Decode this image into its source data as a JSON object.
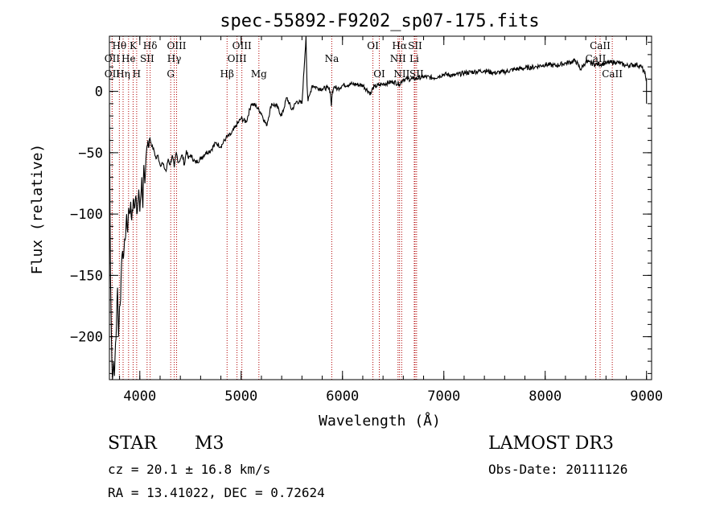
{
  "chart_data": {
    "type": "line",
    "title": "spec-55892-F9202_sp07-175.fits",
    "xlabel": "Wavelength (Å)",
    "ylabel": "Flux (relative)",
    "xlim": [
      3700,
      9050
    ],
    "ylim": [
      -235,
      45
    ],
    "xticks": [
      4000,
      5000,
      6000,
      7000,
      8000,
      9000
    ],
    "yticks": [
      0,
      -50,
      -100,
      -150,
      -200
    ],
    "x_minor_step": 200,
    "y_minor_step": 10,
    "series": [
      {
        "name": "spectrum",
        "x": [
          3700,
          3710,
          3720,
          3730,
          3740,
          3750,
          3760,
          3770,
          3780,
          3790,
          3800,
          3810,
          3820,
          3830,
          3840,
          3850,
          3860,
          3870,
          3880,
          3890,
          3900,
          3910,
          3920,
          3930,
          3940,
          3950,
          3960,
          3970,
          3980,
          3990,
          4000,
          4010,
          4020,
          4030,
          4040,
          4050,
          4060,
          4070,
          4080,
          4090,
          4100,
          4120,
          4140,
          4160,
          4180,
          4200,
          4220,
          4240,
          4260,
          4280,
          4300,
          4320,
          4340,
          4360,
          4380,
          4400,
          4420,
          4440,
          4460,
          4480,
          4500,
          4550,
          4600,
          4650,
          4700,
          4750,
          4800,
          4850,
          4900,
          4950,
          5000,
          5050,
          5100,
          5150,
          5200,
          5250,
          5300,
          5350,
          5400,
          5450,
          5500,
          5550,
          5600,
          5640,
          5650,
          5660,
          5680,
          5700,
          5750,
          5800,
          5850,
          5880,
          5890,
          5900,
          5910,
          5920,
          5950,
          6000,
          6100,
          6200,
          6280,
          6300,
          6320,
          6400,
          6500,
          6560,
          6600,
          6700,
          6800,
          6900,
          7000,
          7100,
          7200,
          7300,
          7400,
          7500,
          7600,
          7700,
          7800,
          7900,
          8000,
          8100,
          8200,
          8300,
          8350,
          8400,
          8500,
          8600,
          8700,
          8800,
          8900,
          8950,
          8980,
          9000
        ],
        "y": [
          -10,
          -150,
          -200,
          -235,
          -220,
          -232,
          -205,
          -190,
          -160,
          -200,
          -175,
          -170,
          -140,
          -130,
          -135,
          -120,
          -118,
          -100,
          -115,
          -95,
          -100,
          -90,
          -105,
          -98,
          -88,
          -95,
          -85,
          -100,
          -92,
          -80,
          -98,
          -85,
          -70,
          -95,
          -60,
          -75,
          -55,
          -45,
          -40,
          -45,
          -38,
          -45,
          -48,
          -55,
          -52,
          -60,
          -58,
          -62,
          -65,
          -55,
          -60,
          -52,
          -62,
          -50,
          -58,
          -55,
          -52,
          -60,
          -48,
          -55,
          -52,
          -58,
          -55,
          -50,
          -48,
          -42,
          -45,
          -38,
          -35,
          -28,
          -22,
          -25,
          -10,
          -12,
          -18,
          -28,
          -10,
          -12,
          -20,
          -5,
          -15,
          -8,
          -10,
          45,
          5,
          -8,
          -2,
          5,
          3,
          2,
          3,
          0,
          -12,
          0,
          2,
          4,
          2,
          5,
          6,
          5,
          -2,
          3,
          4,
          6,
          8,
          6,
          10,
          10,
          12,
          11,
          14,
          13,
          15,
          16,
          17,
          15,
          16,
          18,
          19,
          20,
          22,
          21,
          23,
          25,
          18,
          24,
          22,
          23,
          24,
          21,
          22,
          20,
          15,
          10
        ]
      }
    ],
    "emission_lines": [
      {
        "label": "Hθ",
        "x": 3798,
        "row": 0
      },
      {
        "label": "OII",
        "x": 3727,
        "row": 1
      },
      {
        "label": "OII",
        "x": 3727,
        "row": 2
      },
      {
        "label": "Hη",
        "x": 3835,
        "row": 2
      },
      {
        "label": "K",
        "x": 3934,
        "row": 0
      },
      {
        "label": "He",
        "x": 3889,
        "row": 1
      },
      {
        "label": "H",
        "x": 3969,
        "row": 2
      },
      {
        "label": "Hδ",
        "x": 4102,
        "row": 0
      },
      {
        "label": "SII",
        "x": 4072,
        "row": 1
      },
      {
        "label": "OIII",
        "x": 4363,
        "row": 0
      },
      {
        "label": "Hγ",
        "x": 4340,
        "row": 1
      },
      {
        "label": "G",
        "x": 4305,
        "row": 2
      },
      {
        "label": "Hβ",
        "x": 4861,
        "row": 2
      },
      {
        "label": "OIII",
        "x": 5007,
        "row": 0
      },
      {
        "label": "OIII",
        "x": 4959,
        "row": 1
      },
      {
        "label": "Mg",
        "x": 5175,
        "row": 2
      },
      {
        "label": "Na",
        "x": 5894,
        "row": 1
      },
      {
        "label": "OI",
        "x": 6300,
        "row": 0
      },
      {
        "label": "OI",
        "x": 6363,
        "row": 2
      },
      {
        "label": "Hα",
        "x": 6563,
        "row": 0
      },
      {
        "label": "SII",
        "x": 6716,
        "row": 0
      },
      {
        "label": "NII",
        "x": 6548,
        "row": 1
      },
      {
        "label": "Li",
        "x": 6708,
        "row": 1
      },
      {
        "label": "NII",
        "x": 6584,
        "row": 2
      },
      {
        "label": "SII",
        "x": 6731,
        "row": 2
      },
      {
        "label": "CaII",
        "x": 8542,
        "row": 0
      },
      {
        "label": "CaII",
        "x": 8498,
        "row": 1
      },
      {
        "label": "CaII",
        "x": 8662,
        "row": 2
      }
    ],
    "line_color": "#b00000"
  },
  "info": {
    "class": "STAR",
    "subclass": "M3",
    "survey": "LAMOST DR3",
    "cz": "cz = 20.1 ± 16.8 km/s",
    "obs_date": "Obs-Date: 20111126",
    "coords": "RA =  13.41022, DEC =   0.72624"
  }
}
